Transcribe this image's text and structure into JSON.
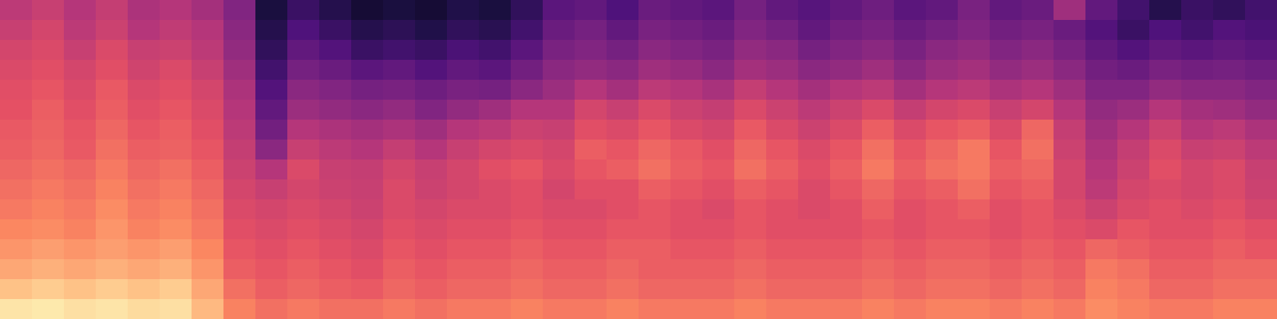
{
  "chart_data": {
    "type": "heatmap",
    "tick_labels": false,
    "zlim": [
      0,
      1
    ],
    "cells": [
      [
        0.52,
        0.55,
        0.5,
        0.54,
        0.48,
        0.5,
        0.46,
        0.38,
        0.12,
        0.2,
        0.15,
        0.1,
        0.12,
        0.1,
        0.14,
        0.12,
        0.18,
        0.28,
        0.3,
        0.25,
        0.32,
        0.3,
        0.28,
        0.35,
        0.3,
        0.27,
        0.3,
        0.33,
        0.28,
        0.3,
        0.36,
        0.3,
        0.32,
        0.45,
        0.3,
        0.22,
        0.15,
        0.2,
        0.18,
        0.22
      ],
      [
        0.55,
        0.58,
        0.52,
        0.56,
        0.5,
        0.53,
        0.5,
        0.4,
        0.15,
        0.25,
        0.2,
        0.15,
        0.17,
        0.14,
        0.18,
        0.16,
        0.22,
        0.32,
        0.35,
        0.3,
        0.36,
        0.34,
        0.32,
        0.38,
        0.35,
        0.3,
        0.34,
        0.36,
        0.32,
        0.35,
        0.38,
        0.34,
        0.36,
        0.32,
        0.26,
        0.2,
        0.25,
        0.22,
        0.26,
        0.24
      ],
      [
        0.58,
        0.6,
        0.55,
        0.6,
        0.55,
        0.56,
        0.52,
        0.42,
        0.18,
        0.3,
        0.26,
        0.2,
        0.22,
        0.2,
        0.24,
        0.22,
        0.28,
        0.36,
        0.38,
        0.35,
        0.4,
        0.38,
        0.36,
        0.42,
        0.4,
        0.35,
        0.38,
        0.4,
        0.36,
        0.4,
        0.42,
        0.38,
        0.4,
        0.36,
        0.3,
        0.26,
        0.3,
        0.28,
        0.3,
        0.28
      ],
      [
        0.6,
        0.62,
        0.58,
        0.62,
        0.57,
        0.6,
        0.55,
        0.45,
        0.22,
        0.35,
        0.32,
        0.28,
        0.3,
        0.26,
        0.3,
        0.28,
        0.34,
        0.4,
        0.42,
        0.4,
        0.45,
        0.43,
        0.4,
        0.46,
        0.44,
        0.4,
        0.42,
        0.45,
        0.4,
        0.44,
        0.46,
        0.42,
        0.44,
        0.4,
        0.34,
        0.32,
        0.36,
        0.34,
        0.35,
        0.33
      ],
      [
        0.62,
        0.64,
        0.6,
        0.65,
        0.6,
        0.62,
        0.58,
        0.48,
        0.26,
        0.4,
        0.38,
        0.35,
        0.36,
        0.33,
        0.36,
        0.35,
        0.4,
        0.44,
        0.5,
        0.46,
        0.52,
        0.5,
        0.47,
        0.54,
        0.5,
        0.46,
        0.5,
        0.52,
        0.46,
        0.5,
        0.52,
        0.48,
        0.5,
        0.45,
        0.38,
        0.38,
        0.42,
        0.4,
        0.4,
        0.38
      ],
      [
        0.63,
        0.66,
        0.62,
        0.66,
        0.62,
        0.64,
        0.6,
        0.5,
        0.3,
        0.44,
        0.42,
        0.4,
        0.42,
        0.38,
        0.42,
        0.45,
        0.5,
        0.5,
        0.58,
        0.55,
        0.6,
        0.56,
        0.54,
        0.6,
        0.56,
        0.52,
        0.56,
        0.6,
        0.54,
        0.58,
        0.6,
        0.55,
        0.58,
        0.5,
        0.42,
        0.44,
        0.5,
        0.46,
        0.45,
        0.42
      ],
      [
        0.65,
        0.67,
        0.64,
        0.68,
        0.64,
        0.66,
        0.62,
        0.52,
        0.34,
        0.5,
        0.48,
        0.46,
        0.48,
        0.45,
        0.5,
        0.52,
        0.56,
        0.55,
        0.62,
        0.6,
        0.64,
        0.6,
        0.58,
        0.65,
        0.6,
        0.56,
        0.6,
        0.66,
        0.6,
        0.64,
        0.66,
        0.6,
        0.68,
        0.54,
        0.45,
        0.5,
        0.56,
        0.5,
        0.52,
        0.48
      ],
      [
        0.66,
        0.68,
        0.65,
        0.7,
        0.66,
        0.67,
        0.64,
        0.54,
        0.4,
        0.55,
        0.52,
        0.5,
        0.54,
        0.5,
        0.55,
        0.58,
        0.6,
        0.58,
        0.66,
        0.64,
        0.68,
        0.65,
        0.62,
        0.68,
        0.64,
        0.6,
        0.64,
        0.7,
        0.64,
        0.68,
        0.72,
        0.64,
        0.7,
        0.56,
        0.48,
        0.54,
        0.6,
        0.55,
        0.56,
        0.52
      ],
      [
        0.68,
        0.7,
        0.68,
        0.72,
        0.68,
        0.7,
        0.66,
        0.56,
        0.5,
        0.6,
        0.55,
        0.54,
        0.58,
        0.55,
        0.58,
        0.62,
        0.64,
        0.6,
        0.64,
        0.66,
        0.7,
        0.66,
        0.64,
        0.7,
        0.66,
        0.62,
        0.66,
        0.72,
        0.66,
        0.7,
        0.72,
        0.66,
        0.68,
        0.58,
        0.5,
        0.56,
        0.62,
        0.58,
        0.6,
        0.55
      ],
      [
        0.7,
        0.72,
        0.7,
        0.74,
        0.7,
        0.72,
        0.68,
        0.58,
        0.55,
        0.58,
        0.56,
        0.55,
        0.6,
        0.56,
        0.58,
        0.6,
        0.62,
        0.58,
        0.62,
        0.62,
        0.66,
        0.64,
        0.62,
        0.66,
        0.64,
        0.6,
        0.64,
        0.68,
        0.64,
        0.66,
        0.7,
        0.64,
        0.66,
        0.58,
        0.52,
        0.58,
        0.6,
        0.58,
        0.6,
        0.56
      ],
      [
        0.72,
        0.74,
        0.72,
        0.76,
        0.72,
        0.74,
        0.7,
        0.6,
        0.58,
        0.6,
        0.58,
        0.56,
        0.6,
        0.58,
        0.6,
        0.6,
        0.62,
        0.6,
        0.6,
        0.62,
        0.64,
        0.62,
        0.6,
        0.64,
        0.62,
        0.6,
        0.62,
        0.66,
        0.62,
        0.64,
        0.66,
        0.62,
        0.64,
        0.6,
        0.56,
        0.6,
        0.62,
        0.6,
        0.62,
        0.58
      ],
      [
        0.75,
        0.76,
        0.74,
        0.78,
        0.74,
        0.76,
        0.72,
        0.62,
        0.6,
        0.62,
        0.6,
        0.58,
        0.62,
        0.6,
        0.62,
        0.62,
        0.64,
        0.62,
        0.62,
        0.64,
        0.64,
        0.62,
        0.62,
        0.64,
        0.62,
        0.62,
        0.62,
        0.64,
        0.62,
        0.64,
        0.64,
        0.62,
        0.64,
        0.62,
        0.6,
        0.64,
        0.62,
        0.62,
        0.64,
        0.62
      ],
      [
        0.78,
        0.8,
        0.78,
        0.8,
        0.78,
        0.8,
        0.75,
        0.64,
        0.62,
        0.64,
        0.62,
        0.6,
        0.64,
        0.62,
        0.64,
        0.64,
        0.66,
        0.64,
        0.64,
        0.66,
        0.66,
        0.64,
        0.64,
        0.66,
        0.64,
        0.64,
        0.64,
        0.66,
        0.64,
        0.66,
        0.66,
        0.64,
        0.66,
        0.64,
        0.68,
        0.66,
        0.64,
        0.64,
        0.66,
        0.64
      ],
      [
        0.82,
        0.84,
        0.82,
        0.84,
        0.82,
        0.84,
        0.78,
        0.66,
        0.64,
        0.66,
        0.64,
        0.62,
        0.66,
        0.64,
        0.66,
        0.66,
        0.68,
        0.66,
        0.66,
        0.68,
        0.66,
        0.66,
        0.66,
        0.68,
        0.66,
        0.66,
        0.66,
        0.68,
        0.66,
        0.68,
        0.68,
        0.66,
        0.68,
        0.66,
        0.72,
        0.7,
        0.66,
        0.66,
        0.68,
        0.68
      ],
      [
        0.88,
        0.9,
        0.88,
        0.9,
        0.88,
        0.9,
        0.82,
        0.7,
        0.66,
        0.68,
        0.66,
        0.65,
        0.68,
        0.66,
        0.68,
        0.68,
        0.7,
        0.68,
        0.68,
        0.7,
        0.68,
        0.68,
        0.68,
        0.7,
        0.68,
        0.68,
        0.68,
        0.7,
        0.68,
        0.7,
        0.7,
        0.68,
        0.7,
        0.68,
        0.74,
        0.72,
        0.68,
        0.68,
        0.7,
        0.7
      ],
      [
        0.95,
        0.96,
        0.94,
        0.95,
        0.93,
        0.94,
        0.86,
        0.74,
        0.7,
        0.72,
        0.7,
        0.7,
        0.72,
        0.7,
        0.72,
        0.72,
        0.74,
        0.72,
        0.72,
        0.74,
        0.72,
        0.72,
        0.72,
        0.74,
        0.72,
        0.72,
        0.72,
        0.74,
        0.72,
        0.74,
        0.74,
        0.72,
        0.74,
        0.72,
        0.76,
        0.74,
        0.72,
        0.72,
        0.74,
        0.74
      ]
    ]
  }
}
